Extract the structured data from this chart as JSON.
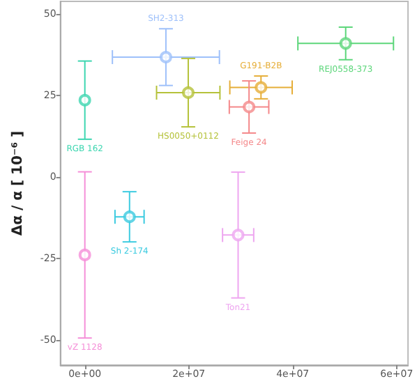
{
  "chart_data": {
    "type": "scatter",
    "ylabel": "Δα / α [ 10⁻⁶ ]",
    "xlim": [
      -4700000,
      62200000
    ],
    "ylim": [
      -57.8,
      53.8
    ],
    "xticks": [
      {
        "value": 0,
        "label": "0e+00"
      },
      {
        "value": 20000000,
        "label": "2e+07"
      },
      {
        "value": 40000000,
        "label": "4e+07"
      },
      {
        "value": 60000000,
        "label": "6e+07"
      }
    ],
    "yticks": [
      -50,
      -25,
      0,
      25,
      50
    ],
    "marker": "circle",
    "series": [
      {
        "name": "RGB 162",
        "color": "#3dd6b0",
        "x": [
          0
        ],
        "values": [
          23.5
        ],
        "errors": [
          12
        ]
      },
      {
        "name": "vZ 1128",
        "color": "#f58fd8",
        "x": [
          0
        ],
        "values": [
          -24
        ],
        "errors": [
          25.5
        ]
      },
      {
        "name": "Sh 2-174",
        "color": "#3ccbe0",
        "x": [
          8600000
        ],
        "values": [
          -12.3
        ],
        "errors": [
          7.7
        ],
        "xerrors": [
          2800000
        ]
      },
      {
        "name": "SH2-313",
        "color": "#9ec0fa",
        "x": [
          15600000
        ],
        "values": [
          36.7
        ],
        "errors": [
          8.7
        ],
        "xerrors": [
          10300000
        ]
      },
      {
        "name": "HS0050+0112",
        "color": "#b5c23a",
        "x": [
          19900000
        ],
        "values": [
          25.8
        ],
        "errors": [
          10.5
        ],
        "xerrors": [
          6100000
        ]
      },
      {
        "name": "G191-B2B",
        "color": "#e6ae38",
        "x": [
          33900000
        ],
        "values": [
          27.4
        ],
        "errors": [
          3.5
        ],
        "xerrors": [
          6000000
        ]
      },
      {
        "name": "Feige 24",
        "color": "#f4888a",
        "x": [
          31600000
        ],
        "values": [
          21.4
        ],
        "errors": [
          8
        ],
        "xerrors": [
          3800000
        ]
      },
      {
        "name": "REJ0558-373",
        "color": "#5cd67a",
        "x": [
          50200000
        ],
        "values": [
          40.9
        ],
        "errors": [
          5
        ],
        "xerrors": [
          9200000
        ]
      },
      {
        "name": "Ton21",
        "color": "#eea6f0",
        "x": [
          29500000
        ],
        "values": [
          -17.9
        ],
        "errors": [
          19.3
        ],
        "xerrors": [
          3000000
        ]
      }
    ]
  }
}
